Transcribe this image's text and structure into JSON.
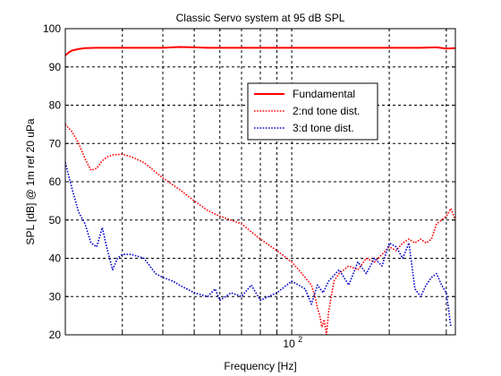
{
  "chart_data": {
    "type": "line",
    "title": "Classic Servo system at 95 dB SPL",
    "xlabel": "Frequency [Hz]",
    "ylabel": "SPL [dB] @ 1m ref 20 uPa",
    "x_scale": "log",
    "xlim": [
      20,
      320
    ],
    "ylim": [
      20,
      100
    ],
    "yticks": [
      20,
      30,
      40,
      50,
      60,
      70,
      80,
      90,
      100
    ],
    "yticklabels": [
      "20",
      "30",
      "40",
      "50",
      "60",
      "70",
      "80",
      "90",
      "100"
    ],
    "xticks_major": [
      100
    ],
    "xticks_major_base": "10",
    "xticks_major_exp": "2",
    "xticks_minor": [
      30,
      40,
      50,
      60,
      70,
      80,
      90,
      200,
      300
    ],
    "grid": true,
    "legend_position": "top-right",
    "series": [
      {
        "name": "Fundamental",
        "color": "#ff0000",
        "style": "solid",
        "x": [
          20,
          20.5,
          21,
          22,
          23,
          25,
          30,
          40,
          45,
          50,
          55,
          60,
          80,
          100,
          150,
          200,
          250,
          280,
          300,
          320
        ],
        "y": [
          93,
          93.8,
          94.3,
          94.7,
          94.9,
          95,
          95,
          95,
          95.2,
          95.1,
          95,
          95,
          95,
          95,
          95,
          95,
          95,
          95.1,
          94.8,
          94.9
        ]
      },
      {
        "name": "2:nd tone dist.",
        "color": "#ff0000",
        "style": "dotted",
        "x": [
          20,
          21,
          22,
          23,
          24,
          25,
          26,
          27,
          28,
          30,
          32,
          35,
          40,
          45,
          50,
          55,
          60,
          70,
          80,
          90,
          100,
          105,
          110,
          115,
          118,
          120,
          122,
          124,
          126,
          128,
          130,
          135,
          140,
          150,
          160,
          170,
          180,
          190,
          200,
          210,
          220,
          230,
          240,
          250,
          260,
          270,
          280,
          290,
          300,
          310,
          320
        ],
        "y": [
          75,
          73,
          70,
          66,
          63,
          63.5,
          65.5,
          66.5,
          67,
          67.2,
          66.5,
          65,
          61,
          58,
          55,
          52.5,
          51,
          49,
          45,
          42,
          39,
          37,
          35,
          33,
          30,
          27,
          25,
          22,
          24,
          20,
          26,
          34,
          36,
          38,
          37,
          40,
          39,
          41,
          43,
          42,
          44,
          45,
          44,
          45,
          44,
          45,
          49,
          50,
          51,
          53,
          50
        ]
      },
      {
        "name": "3:d tone dist.",
        "color": "#0000cc",
        "style": "dotted",
        "x": [
          20,
          21,
          22,
          23,
          24,
          25,
          26,
          27,
          28,
          29,
          30,
          32,
          35,
          38,
          40,
          43,
          45,
          50,
          55,
          58,
          60,
          65,
          70,
          75,
          80,
          90,
          100,
          110,
          115,
          120,
          125,
          130,
          140,
          150,
          160,
          170,
          180,
          190,
          200,
          210,
          220,
          230,
          240,
          250,
          260,
          270,
          280,
          290,
          300,
          310
        ],
        "y": [
          65,
          58,
          52,
          49,
          44,
          43,
          48,
          42,
          37,
          40,
          41,
          41,
          40,
          36,
          35,
          34,
          33,
          31,
          30,
          32,
          29,
          31,
          30,
          33,
          29,
          31,
          34,
          32,
          28,
          33,
          31,
          34,
          37,
          33,
          39,
          36,
          40,
          38,
          44,
          43,
          40,
          44,
          32,
          30,
          33,
          35,
          36,
          33,
          31,
          22
        ]
      }
    ]
  }
}
